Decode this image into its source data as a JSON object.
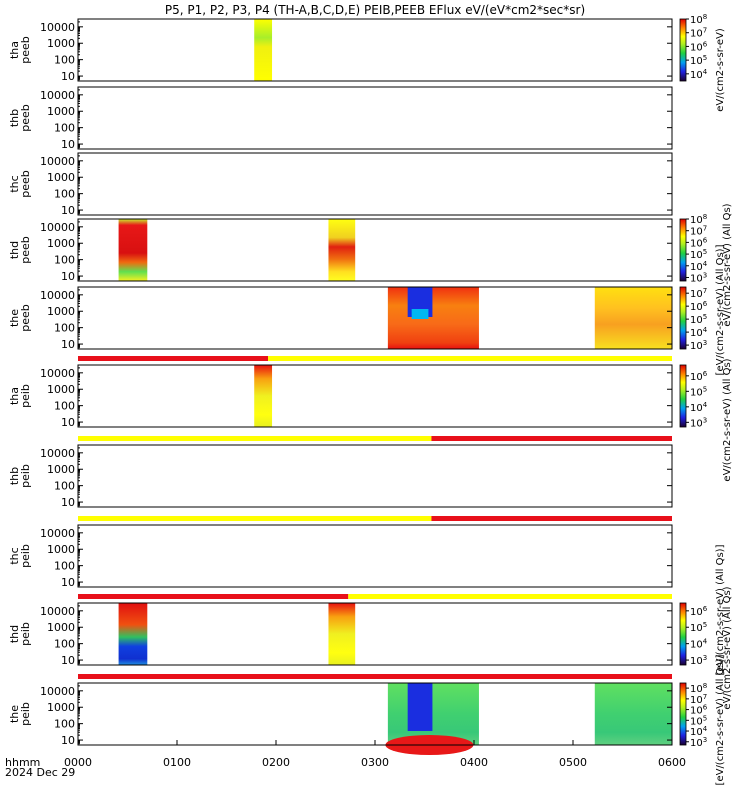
{
  "title": "P5, P1, P2, P3, P4 (TH-A,B,C,D,E) PEIB,PEEB EFlux eV/(eV*cm2*sec*sr)",
  "footer": {
    "time_label": "hhmm",
    "date_label": "2024 Dec 29"
  },
  "xaxis": {
    "range": [
      0,
      6
    ],
    "ticks": [
      "0000",
      "0100",
      "0200",
      "0300",
      "0400",
      "0500",
      "0600"
    ]
  },
  "colors": {
    "red": "#e8101a",
    "orange": "#f26b16",
    "yellow": "#ffff00",
    "green": "#2fd93c",
    "blue": "#1a2ee0",
    "navy": "#20104a"
  },
  "colorbar_labels": [
    "eV/(cm2-s-sr-eV)",
    "eV/(cm2-s-sr-eV) (All Qs)",
    "[eV/(cm2-s-sr-eV) (All Qs)]",
    "eV/(cm2-s-sr-eV) (All Qs)",
    "[eV/(cm2-s-sr-eV) (All Qs)]",
    "eV/(cm2-s-sr-eV) (All Qs)",
    "[eV/(cm2-s-sr-eV) (All Qs)]"
  ],
  "chart_data": [
    {
      "type": "heatmap",
      "panel": "tha peeb",
      "ylabel": [
        "tha",
        "peeb"
      ],
      "yticks": [
        "10",
        "100",
        "1000",
        "10000"
      ],
      "ylim": [
        5,
        30000
      ],
      "yscale": "log",
      "colorbar": {
        "ticks": [
          "10^4",
          "10^5",
          "10^6",
          "10^7",
          "10^8"
        ],
        "range": [
          3000,
          100000000
        ]
      },
      "blocks": [
        {
          "x": [
            1.78,
            1.96
          ],
          "fill": "yellow-green"
        }
      ]
    },
    {
      "type": "heatmap",
      "panel": "thb peeb",
      "ylabel": [
        "thb",
        "peeb"
      ],
      "yticks": [
        "10",
        "100",
        "1000",
        "10000"
      ],
      "ylim": [
        5,
        30000
      ],
      "yscale": "log",
      "blocks": []
    },
    {
      "type": "heatmap",
      "panel": "thc peeb",
      "ylabel": [
        "thc",
        "peeb"
      ],
      "yticks": [
        "10",
        "100",
        "1000",
        "10000"
      ],
      "ylim": [
        5,
        30000
      ],
      "yscale": "log",
      "blocks": []
    },
    {
      "type": "heatmap",
      "panel": "thd peeb",
      "ylabel": [
        "thd",
        "peeb"
      ],
      "yticks": [
        "10",
        "100",
        "1000",
        "10000"
      ],
      "ylim": [
        5,
        30000
      ],
      "yscale": "log",
      "colorbar": {
        "ticks": [
          "10^3",
          "10^4",
          "10^5",
          "10^6",
          "10^7",
          "10^8"
        ],
        "range": [
          500,
          100000000
        ]
      },
      "blocks": [
        {
          "x": [
            0.41,
            0.7
          ],
          "fill": "red-core"
        },
        {
          "x": [
            2.53,
            2.8
          ],
          "fill": "orange-core"
        }
      ]
    },
    {
      "type": "heatmap",
      "panel": "the peeb",
      "ylabel": [
        "the",
        "peeb"
      ],
      "yticks": [
        "10",
        "100",
        "1000",
        "10000"
      ],
      "ylim": [
        5,
        30000
      ],
      "yscale": "log",
      "colorbar": {
        "ticks": [
          "10^3",
          "10^4",
          "10^5",
          "10^6",
          "10^7"
        ],
        "range": [
          500,
          30000000
        ]
      },
      "blocks": [
        {
          "x": [
            3.13,
            4.05
          ],
          "fill": "orange-field"
        },
        {
          "x": [
            5.22,
            6.0
          ],
          "fill": "yellow-field"
        }
      ]
    },
    {
      "type": "heatmap",
      "panel": "tha peib",
      "ylabel": [
        "tha",
        "peib"
      ],
      "yticks": [
        "10",
        "100",
        "1000",
        "10000"
      ],
      "ylim": [
        5,
        30000
      ],
      "yscale": "log",
      "colorbar": {
        "ticks": [
          "10^3",
          "10^4",
          "10^5",
          "10^6"
        ],
        "range": [
          500,
          5000000
        ]
      },
      "mode_bar": [
        {
          "x": [
            0,
            1.92
          ],
          "color": "red"
        },
        {
          "x": [
            1.92,
            6.0
          ],
          "color": "yellow"
        }
      ],
      "blocks": [
        {
          "x": [
            1.78,
            1.96
          ],
          "fill": "yellow-red"
        }
      ]
    },
    {
      "type": "heatmap",
      "panel": "thb peib",
      "ylabel": [
        "thb",
        "peib"
      ],
      "yticks": [
        "10",
        "100",
        "1000",
        "10000"
      ],
      "ylim": [
        5,
        30000
      ],
      "yscale": "log",
      "mode_bar": [
        {
          "x": [
            0,
            3.57
          ],
          "color": "yellow"
        },
        {
          "x": [
            3.57,
            6.0
          ],
          "color": "red"
        }
      ],
      "blocks": []
    },
    {
      "type": "heatmap",
      "panel": "thc peib",
      "ylabel": [
        "thc",
        "peib"
      ],
      "yticks": [
        "10",
        "100",
        "1000",
        "10000"
      ],
      "ylim": [
        5,
        30000
      ],
      "yscale": "log",
      "mode_bar": [
        {
          "x": [
            0,
            3.57
          ],
          "color": "yellow"
        },
        {
          "x": [
            3.57,
            6.0
          ],
          "color": "red"
        }
      ],
      "blocks": []
    },
    {
      "type": "heatmap",
      "panel": "thd peib",
      "ylabel": [
        "thd",
        "peib"
      ],
      "yticks": [
        "10",
        "100",
        "1000",
        "10000"
      ],
      "ylim": [
        5,
        30000
      ],
      "yscale": "log",
      "colorbar": {
        "ticks": [
          "10^3",
          "10^4",
          "10^5",
          "10^6"
        ],
        "range": [
          500,
          3000000
        ]
      },
      "mode_bar": [
        {
          "x": [
            0,
            2.73
          ],
          "color": "red"
        },
        {
          "x": [
            2.73,
            6.0
          ],
          "color": "yellow"
        }
      ],
      "blocks": [
        {
          "x": [
            0.41,
            0.7
          ],
          "fill": "red-blue"
        },
        {
          "x": [
            2.53,
            2.8
          ],
          "fill": "yellow-red"
        }
      ]
    },
    {
      "type": "heatmap",
      "panel": "the peib",
      "ylabel": [
        "the",
        "peib"
      ],
      "yticks": [
        "10",
        "100",
        "1000",
        "10000"
      ],
      "ylim": [
        5,
        30000
      ],
      "yscale": "log",
      "colorbar": {
        "ticks": [
          "10^3",
          "10^4",
          "10^5",
          "10^6",
          "10^7",
          "10^8"
        ],
        "range": [
          500,
          300000000
        ]
      },
      "mode_bar": [
        {
          "x": [
            0,
            6.0
          ],
          "color": "red"
        }
      ],
      "blocks": [
        {
          "x": [
            3.13,
            4.05
          ],
          "fill": "green-field"
        },
        {
          "x": [
            5.22,
            6.0
          ],
          "fill": "green-field"
        }
      ]
    }
  ]
}
